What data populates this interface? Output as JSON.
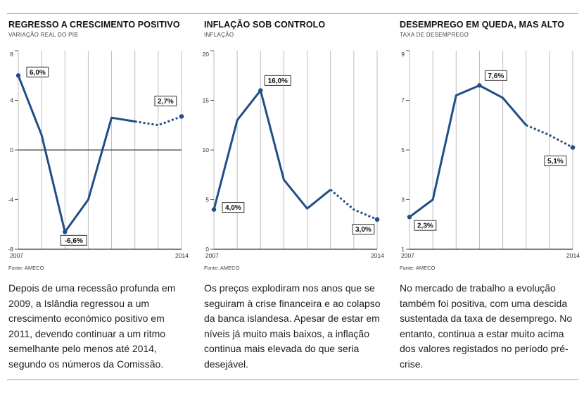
{
  "styles": {
    "line_color": "#1f4f87",
    "grid_color": "#bdbdbd",
    "text_color": "#222222"
  },
  "panels": [
    {
      "title": "REGRESSO A CRESCIMENTO POSITIVO",
      "subtitle": "VARIAÇÃO REAL DO PIB",
      "source": "Fonte: AMECO",
      "text": "Depois de uma recessão profunda em 2009, a Islândia regressou a um crescimento económico positivo em 2011, devendo continuar a um ritmo semelhante pelo menos até 2014, segundo os números da Comissão."
    },
    {
      "title": "INFLAÇÃO SOB CONTROLO",
      "subtitle": "INFLAÇÃO",
      "source": "Fonte: AMECO",
      "text": "Os preços explodiram nos anos que se seguiram à crise financeira e ao colapso da banca islandesa. Apesar de estar em níveis já muito mais baixos, a inflação continua mais elevada do que seria desejável."
    },
    {
      "title": "DESEMPREGO EM QUEDA, MAS ALTO",
      "subtitle": "TAXA DE DESEMPREGO",
      "source": "Fonte: AMECO",
      "text": "No mercado de trabalho a evolução também foi positiva, com uma descida sustentada da taxa de desemprego. No entanto, continua a estar muito acima dos valores registados no período pré-crise."
    }
  ],
  "chart_data": [
    {
      "type": "line",
      "title": "REGRESSO A CRESCIMENTO POSITIVO",
      "subtitle": "VARIAÇÃO REAL DO PIB",
      "x": [
        2007,
        2008,
        2009,
        2010,
        2011,
        2012,
        2013,
        2014
      ],
      "values": [
        6.0,
        1.2,
        -6.6,
        -4.0,
        2.6,
        2.3,
        2.0,
        2.7
      ],
      "projected_from_index": 5,
      "ylim": [
        -8,
        8
      ],
      "yticks": [
        -8,
        -4,
        0,
        4,
        8
      ],
      "ytick_labels": [
        "-8",
        "-4",
        "0",
        "4",
        "8"
      ],
      "xtick_labels": [
        {
          "x": 2007,
          "label": "2007"
        },
        {
          "x": 2014,
          "label": "2014"
        }
      ],
      "zero_line": true,
      "vertical_gridlines": true,
      "annotations": [
        {
          "index": 0,
          "label": "6,0%"
        },
        {
          "index": 2,
          "label": "-6,6%"
        },
        {
          "index": 7,
          "label": "2,7%"
        }
      ]
    },
    {
      "type": "line",
      "title": "INFLAÇÃO SOB CONTROLO",
      "subtitle": "INFLAÇÃO",
      "x": [
        2007,
        2008,
        2009,
        2010,
        2011,
        2012,
        2013,
        2014
      ],
      "values": [
        4.0,
        13.0,
        16.0,
        7.0,
        4.1,
        6.0,
        4.0,
        3.0
      ],
      "projected_from_index": 5,
      "ylim": [
        0,
        20
      ],
      "yticks": [
        0,
        5,
        10,
        15,
        20
      ],
      "ytick_labels": [
        "0",
        "5",
        "10",
        "15",
        "20"
      ],
      "xtick_labels": [
        {
          "x": 2007,
          "label": "2007"
        },
        {
          "x": 2014,
          "label": "2014"
        }
      ],
      "zero_line": false,
      "vertical_gridlines": true,
      "annotations": [
        {
          "index": 0,
          "label": "4,0%"
        },
        {
          "index": 2,
          "label": "16,0%"
        },
        {
          "index": 7,
          "label": "3,0%"
        }
      ]
    },
    {
      "type": "line",
      "title": "DESEMPREGO EM QUEDA, MAS ALTO",
      "subtitle": "TAXA DE DESEMPREGO",
      "x": [
        2007,
        2008,
        2009,
        2010,
        2011,
        2012,
        2013,
        2014
      ],
      "values": [
        2.3,
        3.0,
        7.2,
        7.6,
        7.1,
        6.0,
        5.6,
        5.1
      ],
      "projected_from_index": 5,
      "ylim": [
        1,
        9
      ],
      "yticks": [
        1,
        3,
        5,
        7,
        9
      ],
      "ytick_labels": [
        "1",
        "3",
        "5",
        "7",
        "9"
      ],
      "xtick_labels": [
        {
          "x": 2007,
          "label": "2007"
        },
        {
          "x": 2014,
          "label": "2014"
        }
      ],
      "zero_line": false,
      "vertical_gridlines": true,
      "annotations": [
        {
          "index": 0,
          "label": "2,3%"
        },
        {
          "index": 3,
          "label": "7,6%"
        },
        {
          "index": 7,
          "label": "5,1%"
        }
      ]
    }
  ]
}
